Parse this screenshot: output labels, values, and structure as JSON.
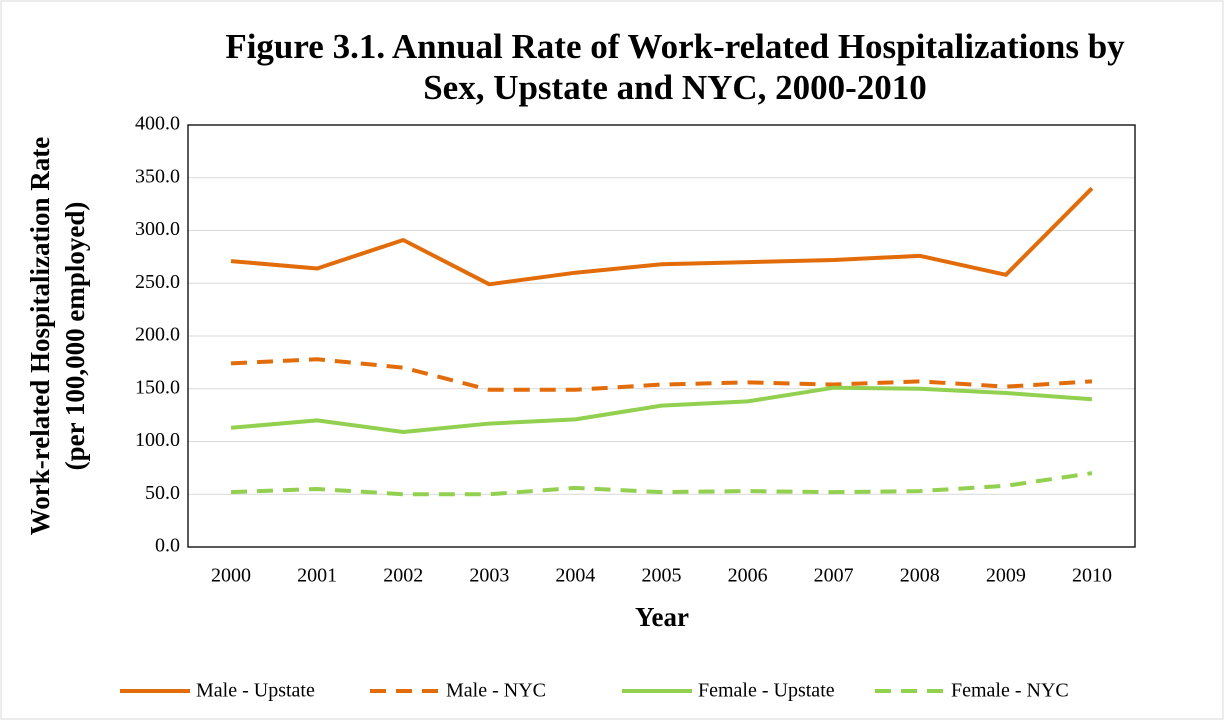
{
  "chart_data": {
    "type": "line",
    "title": [
      "Figure 3.1. Annual Rate of Work-related Hospitalizations by",
      "Sex, Upstate and NYC, 2000-2010"
    ],
    "x_label": "Year",
    "y_label": [
      "Work-related Hospitalization Rate",
      "(per 100,000 employed)"
    ],
    "categories": [
      "2000",
      "2001",
      "2002",
      "2003",
      "2004",
      "2005",
      "2006",
      "2007",
      "2008",
      "2009",
      "2010"
    ],
    "series": [
      {
        "name": "Male - Upstate",
        "color": "#e36c0a",
        "dashed": false,
        "values": [
          271,
          264,
          291,
          249,
          260,
          268,
          270,
          272,
          276,
          258,
          340
        ]
      },
      {
        "name": "Male - NYC",
        "color": "#e36c0a",
        "dashed": true,
        "values": [
          174,
          178,
          170,
          149,
          149,
          154,
          156,
          154,
          157,
          152,
          157
        ]
      },
      {
        "name": "Female - Upstate",
        "color": "#92d050",
        "dashed": false,
        "values": [
          113,
          120,
          109,
          117,
          121,
          134,
          138,
          151,
          150,
          146,
          140
        ]
      },
      {
        "name": "Female - NYC",
        "color": "#92d050",
        "dashed": true,
        "values": [
          52,
          55,
          50,
          50,
          56,
          52,
          53,
          52,
          53,
          58,
          70
        ]
      }
    ],
    "ylim": [
      0,
      400
    ],
    "yticks": [
      {
        "value": 0,
        "label": "0.0"
      },
      {
        "value": 50,
        "label": "50.0"
      },
      {
        "value": 100,
        "label": "100.0"
      },
      {
        "value": 150,
        "label": "150.0"
      },
      {
        "value": 200,
        "label": "200.0"
      },
      {
        "value": 250,
        "label": "250.0"
      },
      {
        "value": 300,
        "label": "300.0"
      },
      {
        "value": 350,
        "label": "350.0"
      },
      {
        "value": 400,
        "label": "400.0"
      }
    ],
    "grid": true,
    "legend": "bottom"
  }
}
